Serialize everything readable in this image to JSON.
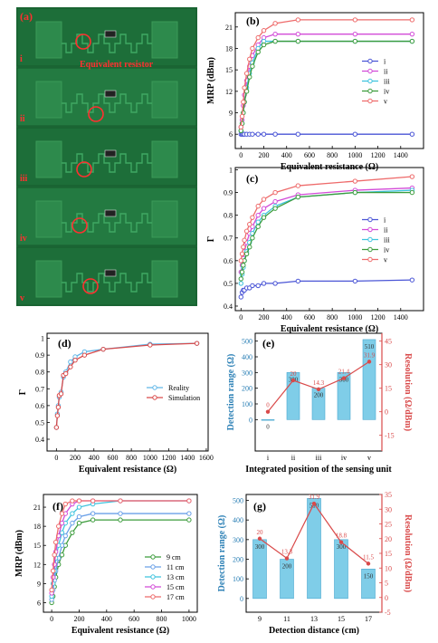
{
  "panel_a": {
    "label": "(a)",
    "annotation": "Equivalent resistor",
    "positions": [
      "i",
      "ii",
      "iii",
      "iv",
      "v"
    ]
  },
  "chart_data": [
    {
      "id": "b",
      "label": "(b)",
      "type": "line",
      "xlabel": "Equivalent resistance (Ω)",
      "ylabel": "MRP (dBm)",
      "xlim": [
        -50,
        1600
      ],
      "ylim": [
        4,
        23
      ],
      "xticks": [
        0,
        200,
        400,
        600,
        800,
        1000,
        1200,
        1400
      ],
      "yticks": [
        6,
        9,
        12,
        15,
        18,
        21
      ],
      "legend": "center-right",
      "x": [
        0,
        10,
        20,
        30,
        50,
        75,
        100,
        150,
        200,
        300,
        500,
        1000,
        1500
      ],
      "series": [
        {
          "name": "i",
          "color": "#4a55d6",
          "values": [
            6,
            6,
            6,
            6,
            6,
            6,
            6,
            6,
            6,
            6,
            6,
            6,
            6
          ]
        },
        {
          "name": "ii",
          "color": "#d24bd8",
          "values": [
            7,
            8,
            10,
            11.5,
            13.5,
            15.5,
            17,
            18.5,
            19.5,
            20,
            20,
            20,
            20
          ]
        },
        {
          "name": "iii",
          "color": "#3ec3de",
          "values": [
            6.5,
            7.5,
            9,
            10.5,
            12.5,
            14.5,
            16,
            18,
            19,
            19,
            19,
            19,
            19
          ]
        },
        {
          "name": "iv",
          "color": "#3c9c3c",
          "values": [
            6.5,
            7.5,
            9,
            10.5,
            12,
            14,
            15.5,
            17.5,
            18.5,
            19,
            19,
            19,
            19
          ]
        },
        {
          "name": "v",
          "color": "#ee6b6b",
          "values": [
            7,
            8.5,
            10.5,
            12.5,
            14.5,
            16.5,
            18,
            19.5,
            20.5,
            21.5,
            22,
            22,
            22
          ]
        }
      ]
    },
    {
      "id": "c",
      "label": "(c)",
      "type": "line",
      "xlabel": "Equivalent resistance (Ω)",
      "ylabel": "Γ",
      "xlim": [
        -50,
        1600
      ],
      "ylim": [
        0.38,
        1.01
      ],
      "xticks": [
        0,
        200,
        400,
        600,
        800,
        1000,
        1200,
        1400
      ],
      "yticks": [
        0.4,
        0.5,
        0.6,
        0.7,
        0.8,
        0.9,
        1.0
      ],
      "legend": "center-right",
      "x": [
        0,
        10,
        20,
        30,
        50,
        75,
        100,
        150,
        200,
        300,
        500,
        1000,
        1500
      ],
      "series": [
        {
          "name": "i",
          "color": "#4a55d6",
          "values": [
            0.44,
            0.46,
            0.47,
            0.47,
            0.48,
            0.48,
            0.49,
            0.49,
            0.5,
            0.5,
            0.51,
            0.51,
            0.515
          ]
        },
        {
          "name": "ii",
          "color": "#d24bd8",
          "values": [
            0.55,
            0.58,
            0.61,
            0.64,
            0.68,
            0.72,
            0.75,
            0.8,
            0.83,
            0.86,
            0.89,
            0.91,
            0.92
          ]
        },
        {
          "name": "iii",
          "color": "#3ec3de",
          "values": [
            0.5,
            0.54,
            0.57,
            0.6,
            0.64,
            0.68,
            0.72,
            0.77,
            0.8,
            0.84,
            0.88,
            0.9,
            0.91
          ]
        },
        {
          "name": "iv",
          "color": "#3c9c3c",
          "values": [
            0.52,
            0.55,
            0.58,
            0.6,
            0.63,
            0.66,
            0.7,
            0.75,
            0.79,
            0.83,
            0.88,
            0.9,
            0.9
          ]
        },
        {
          "name": "v",
          "color": "#ee6b6b",
          "values": [
            0.6,
            0.63,
            0.66,
            0.69,
            0.73,
            0.76,
            0.79,
            0.84,
            0.87,
            0.9,
            0.93,
            0.95,
            0.97
          ]
        }
      ]
    },
    {
      "id": "d",
      "label": "(d)",
      "type": "line",
      "xlabel": "Equivalent resistance (Ω)",
      "ylabel": "Γ",
      "xlim": [
        -100,
        1620
      ],
      "ylim": [
        0.33,
        1.03
      ],
      "xticks": [
        0,
        200,
        400,
        600,
        800,
        1000,
        1200,
        1400,
        1600
      ],
      "yticks": [
        0.4,
        0.5,
        0.6,
        0.7,
        0.8,
        0.9,
        1.0
      ],
      "legend": "center-right",
      "x": [
        0,
        10,
        20,
        30,
        50,
        75,
        100,
        150,
        200,
        300,
        500,
        1000,
        1500
      ],
      "series": [
        {
          "name": "Reality",
          "color": "#5fb6e8",
          "values": [
            0.47,
            0.55,
            0.6,
            0.65,
            0.68,
            0.77,
            0.8,
            0.86,
            0.89,
            0.92,
            0.935,
            0.965,
            0.97
          ]
        },
        {
          "name": "Simulation",
          "color": "#d94a4a",
          "values": [
            0.47,
            0.54,
            0.59,
            0.66,
            0.67,
            0.78,
            0.79,
            0.83,
            0.87,
            0.9,
            0.935,
            0.96,
            0.97
          ]
        }
      ]
    },
    {
      "id": "e",
      "label": "(e)",
      "type": "bar",
      "xlabel": "Integrated position of the sensing unit",
      "ylabel": "Detection range (Ω)",
      "y2label": "Resolution (Ω/dBm)",
      "categories": [
        "i",
        "ii",
        "iii",
        "iv",
        "v"
      ],
      "ylim": [
        -200,
        550
      ],
      "yticks": [
        0,
        100,
        200,
        300,
        400,
        500
      ],
      "y2lim": [
        -25,
        50
      ],
      "y2ticks": [
        -15,
        0,
        15,
        30,
        45
      ],
      "bar_values": [
        0,
        300,
        200,
        300,
        510
      ],
      "line_values": [
        0,
        20,
        14.3,
        21.4,
        31.9
      ],
      "bar_color": "#7fcde8",
      "line_color": "#d94a4a"
    },
    {
      "id": "f",
      "label": "(f)",
      "type": "line",
      "xlabel": "Equivalent resistance (Ω)",
      "ylabel": "MRP (dBm)",
      "xlim": [
        -60,
        1060
      ],
      "ylim": [
        4.5,
        23
      ],
      "xticks": [
        0,
        200,
        400,
        600,
        800,
        1000
      ],
      "yticks": [
        6,
        9,
        12,
        15,
        18,
        21
      ],
      "legend": "bottom-right",
      "x": [
        0,
        10,
        20,
        30,
        50,
        75,
        100,
        150,
        200,
        300,
        500,
        1000
      ],
      "series": [
        {
          "name": "9 cm",
          "color": "#3c9c3c",
          "values": [
            6,
            7,
            8.5,
            10,
            12,
            13.5,
            15,
            17,
            18.5,
            19,
            19,
            19
          ]
        },
        {
          "name": "11 cm",
          "color": "#6aa0e8",
          "values": [
            6.5,
            8,
            9.5,
            11,
            13,
            15,
            16.5,
            18.5,
            19.5,
            20,
            20,
            20
          ]
        },
        {
          "name": "13 cm",
          "color": "#3ec3de",
          "values": [
            7,
            9,
            11,
            13,
            15,
            17,
            18.5,
            20,
            21,
            21.5,
            22,
            22
          ]
        },
        {
          "name": "15 cm",
          "color": "#d24bd8",
          "values": [
            7.5,
            10,
            12,
            14,
            16.5,
            18.5,
            20,
            21.5,
            22,
            22,
            22,
            22
          ]
        },
        {
          "name": "17 cm",
          "color": "#ee6b6b",
          "values": [
            8,
            11,
            13.5,
            15.5,
            18,
            20,
            21.5,
            22,
            22,
            22,
            22,
            22
          ]
        }
      ]
    },
    {
      "id": "g",
      "label": "(g)",
      "type": "bar",
      "xlabel": "Detection distance (cm)",
      "ylabel": "Detection range (Ω)",
      "y2label": "Resolution (Ω/dBm)",
      "categories": [
        "9",
        "11",
        "13",
        "15",
        "17"
      ],
      "ylim": [
        -70,
        530
      ],
      "yticks": [
        0,
        100,
        200,
        300,
        400,
        500
      ],
      "y2lim": [
        -5,
        35
      ],
      "y2ticks": [
        -5,
        0,
        5,
        10,
        15,
        20,
        25,
        30,
        35
      ],
      "bar_values": [
        300,
        200,
        510,
        300,
        150
      ],
      "line_values": [
        20,
        13.3,
        31.9,
        18.8,
        11.5
      ],
      "bar_color": "#7fcde8",
      "line_color": "#d94a4a"
    }
  ]
}
